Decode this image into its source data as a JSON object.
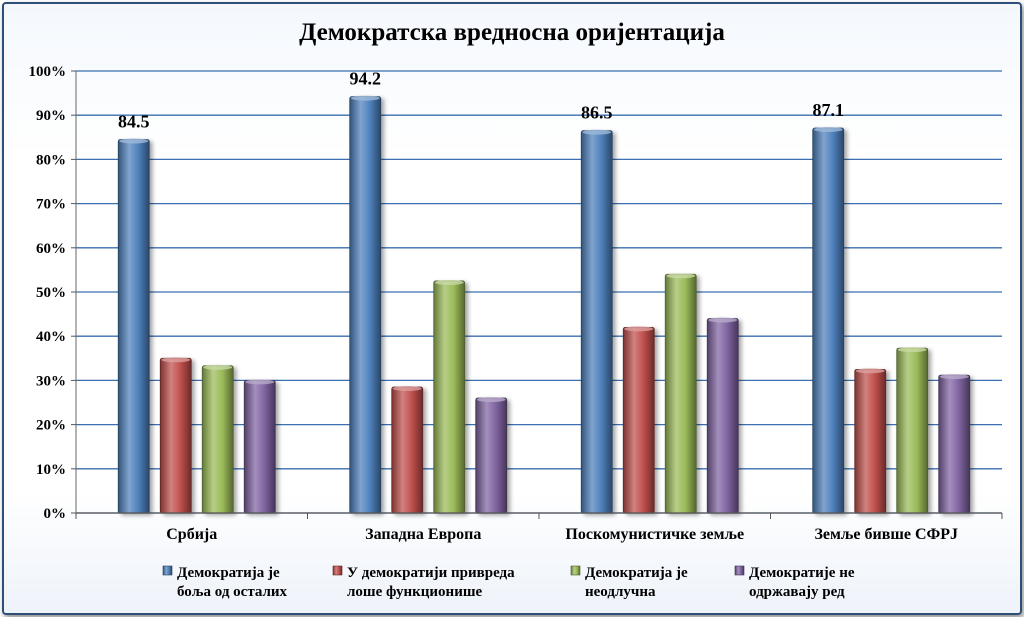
{
  "chart_data": {
    "type": "bar",
    "title": "Демократска вредносна оријентација",
    "categories": [
      "Србија",
      "Западна Европа",
      "Поскомунистичке земље",
      "Земље бивше СФРЈ"
    ],
    "ylim": [
      0,
      100
    ],
    "yticks": [
      0,
      10,
      20,
      30,
      40,
      50,
      60,
      70,
      80,
      90,
      100
    ],
    "ytick_labels": [
      "0%",
      "10%",
      "20%",
      "30%",
      "40%",
      "50%",
      "60%",
      "70%",
      "80%",
      "90%",
      "100%"
    ],
    "grid": true,
    "legend_position": "bottom",
    "series": [
      {
        "name": "Демократија је боља од осталих",
        "legend_lines": [
          "Демократија је",
          "боља од осталих"
        ],
        "color": "#4f81bd",
        "values": [
          84.5,
          94.2,
          86.5,
          87.1
        ],
        "data_labels": [
          "84.5",
          "94.2",
          "86.5",
          "87.1"
        ]
      },
      {
        "name": "У демократији привреда лоше функционише",
        "legend_lines": [
          "У демократији привреда",
          "лоше функционише"
        ],
        "color": "#c0504d",
        "values": [
          35,
          28.5,
          42,
          32.5
        ]
      },
      {
        "name": "Демократија је неодлучна",
        "legend_lines": [
          "Демократија је",
          "неодлучна"
        ],
        "color": "#9bbb59",
        "values": [
          33.3,
          52.5,
          54,
          37.3
        ]
      },
      {
        "name": "Демократије не одржавају ред",
        "legend_lines": [
          "Демократије не",
          "одржавају ред"
        ],
        "color": "#8064a2",
        "values": [
          30,
          26,
          44,
          31.2
        ]
      }
    ]
  }
}
